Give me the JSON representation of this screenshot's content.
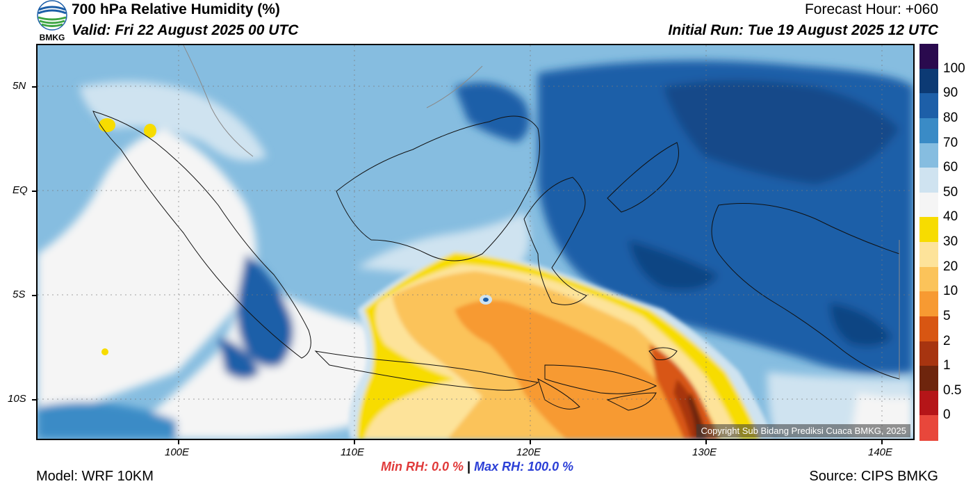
{
  "header": {
    "title": "700 hPa Relative Humidity (%)",
    "valid": "Valid: Fri 22 August 2025 00 UTC",
    "forecast_hour": "Forecast Hour: +060",
    "initial_run": "Initial Run: Tue 19 August 2025 12 UTC"
  },
  "logo": {
    "text": "BMKG"
  },
  "map": {
    "lat_labels": [
      "5N",
      "EQ",
      "5S",
      "10S"
    ],
    "lon_labels": [
      "100E",
      "110E",
      "120E",
      "130E",
      "140E"
    ],
    "copyright": "Copyright Sub Bidang Prediksi Cuaca BMKG, 2025"
  },
  "colorbar": {
    "levels": [
      {
        "label": "100",
        "color": "#2a0a4e"
      },
      {
        "label": "90",
        "color": "#0c3a74"
      },
      {
        "label": "80",
        "color": "#1d5fa8"
      },
      {
        "label": "70",
        "color": "#3a8bc6"
      },
      {
        "label": "60",
        "color": "#86bde0"
      },
      {
        "label": "50",
        "color": "#cfe3f0"
      },
      {
        "label": "40",
        "color": "#f5f5f5"
      },
      {
        "label": "30",
        "color": "#f7dc00"
      },
      {
        "label": "20",
        "color": "#fde39a"
      },
      {
        "label": "10",
        "color": "#fbc35a"
      },
      {
        "label": "5",
        "color": "#f79a32"
      },
      {
        "label": "2",
        "color": "#d85612"
      },
      {
        "label": "1",
        "color": "#a73410"
      },
      {
        "label": "0.5",
        "color": "#6e250d"
      },
      {
        "label": "0",
        "color": "#b51518"
      },
      {
        "label": "",
        "color": "#e8473b"
      }
    ]
  },
  "stats": {
    "min_label": "Min RH:   0.0 %",
    "separator": "|",
    "max_label": "Max RH: 100.0 %"
  },
  "footer": {
    "model": "Model: WRF 10KM",
    "source": "Source: CIPS BMKG"
  }
}
